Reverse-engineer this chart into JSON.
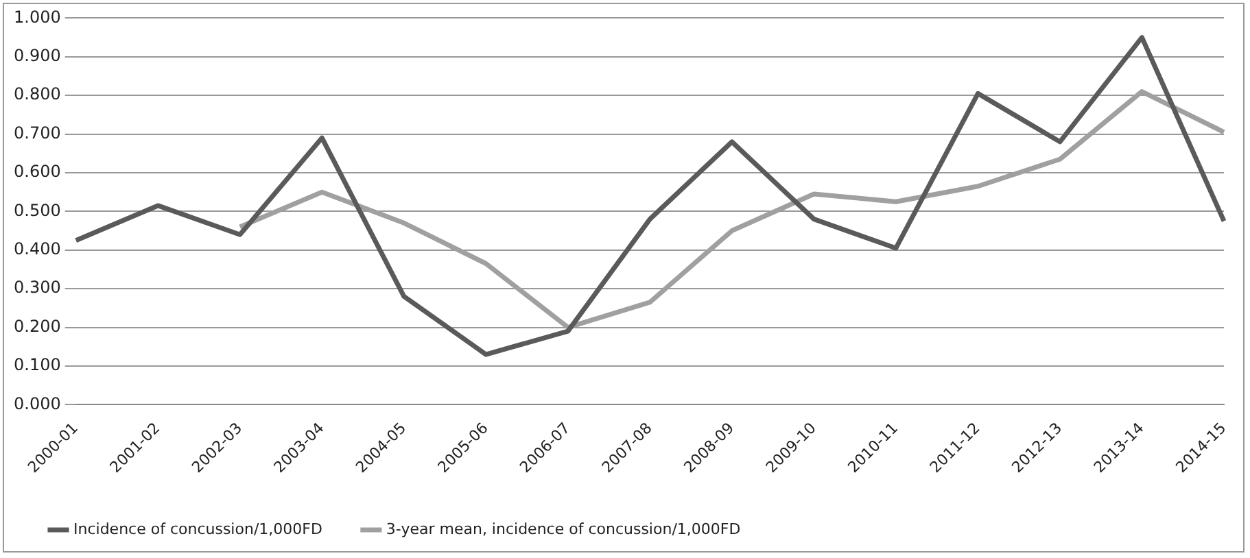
{
  "chart_data": {
    "type": "line",
    "categories": [
      "2000-01",
      "2001-02",
      "2002-03",
      "2003-04",
      "2004-05",
      "2005-06",
      "2006-07",
      "2007-08",
      "2008-09",
      "2009-10",
      "2010-11",
      "2011-12",
      "2012-13",
      "2013-14",
      "2014-15"
    ],
    "series": [
      {
        "name": "Incidence of concussion/1,000FD",
        "color": "#5a5a5a",
        "values": [
          0.425,
          0.515,
          0.44,
          0.69,
          0.28,
          0.13,
          0.19,
          0.48,
          0.68,
          0.48,
          0.405,
          0.805,
          0.68,
          0.95,
          0.475
        ]
      },
      {
        "name": "3-year mean, incidence of concussion/1,000FD",
        "color": "#a0a0a0",
        "values": [
          null,
          null,
          0.46,
          0.55,
          0.47,
          0.365,
          0.2,
          0.265,
          0.45,
          0.545,
          0.525,
          0.565,
          0.635,
          0.81,
          0.705
        ]
      }
    ],
    "ylim": [
      0,
      1
    ],
    "yticks": [
      {
        "value": 0,
        "label": "0.000"
      },
      {
        "value": 0.1,
        "label": "0.100"
      },
      {
        "value": 0.2,
        "label": "0.200"
      },
      {
        "value": 0.3,
        "label": "0.300"
      },
      {
        "value": 0.4,
        "label": "0.400"
      },
      {
        "value": 0.5,
        "label": "0.500"
      },
      {
        "value": 0.6,
        "label": "0.600"
      },
      {
        "value": 0.7,
        "label": "0.700"
      },
      {
        "value": 0.8,
        "label": "0.800"
      },
      {
        "value": 0.9,
        "label": "0.900"
      },
      {
        "value": 1,
        "label": "1.000"
      }
    ],
    "grid": "y",
    "legend": "bottom",
    "marker": "none",
    "line_style": "solid"
  }
}
